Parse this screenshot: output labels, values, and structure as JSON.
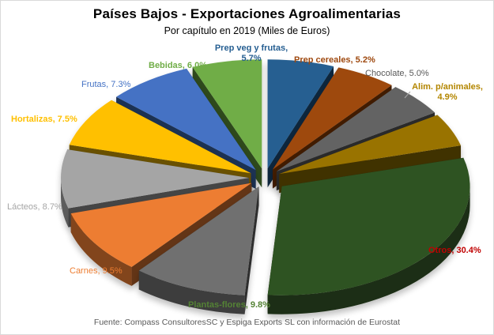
{
  "chart_data": {
    "type": "pie",
    "variant": "3d-exploded",
    "title": "Países Bajos - Exportaciones  Agroalimentarias",
    "subtitle": "Por capítulo en 2019  (Miles de Euros)",
    "source": "Fuente: Compass ConsultoresSC y Espiga Exports SL con información de Eurostat",
    "unit": "%",
    "slices": [
      {
        "name": "Prep veg y frutas",
        "value": 5.7,
        "label": "Prep veg y frutas,",
        "label2": "5.7%",
        "color": "#255e91",
        "label_color": "#255e91"
      },
      {
        "name": "Prep cereales",
        "value": 5.2,
        "label": "Prep cereales, 5.2%",
        "color": "#9e480e",
        "label_color": "#9e480e"
      },
      {
        "name": "Chocolate",
        "value": 5.0,
        "label": "Chocolate,  5.0%",
        "color": "#636363",
        "label_color": "#595959"
      },
      {
        "name": "Alim. p/animales",
        "value": 4.9,
        "label": "Alim. p/animales,",
        "label2": "4.9%",
        "color": "#997300",
        "label_color": "#b38600"
      },
      {
        "name": "Otros",
        "value": 30.4,
        "label": "Otros, 30.4%",
        "color": "#2f5220",
        "label_color": "#c00000"
      },
      {
        "name": "Plantas-flores",
        "value": 9.8,
        "label": "Plantas-flores,  9.8%",
        "color": "#6f6f6f",
        "label_color": "#548235"
      },
      {
        "name": "Carnes",
        "value": 9.5,
        "label": "Carnes, 9.5%",
        "color": "#ed7d31",
        "label_color": "#ed7d31"
      },
      {
        "name": "Lácteos",
        "value": 8.7,
        "label": "Lácteos, 8.7%",
        "color": "#a5a5a5",
        "label_color": "#a5a5a5"
      },
      {
        "name": "Hortalizas",
        "value": 7.5,
        "label": "Hortalizas,  7.5%",
        "color": "#ffc000",
        "label_color": "#ffc000"
      },
      {
        "name": "Frutas",
        "value": 7.3,
        "label": "Frutas, 7.3%",
        "color": "#4472c4",
        "label_color": "#4472c4"
      },
      {
        "name": "Bebidas",
        "value": 6.0,
        "label": "Bebidas,  6.0%",
        "color": "#70ad47",
        "label_color": "#70ad47"
      }
    ],
    "legend": "none",
    "start_angle_deg": -90,
    "direction": "clockwise"
  }
}
